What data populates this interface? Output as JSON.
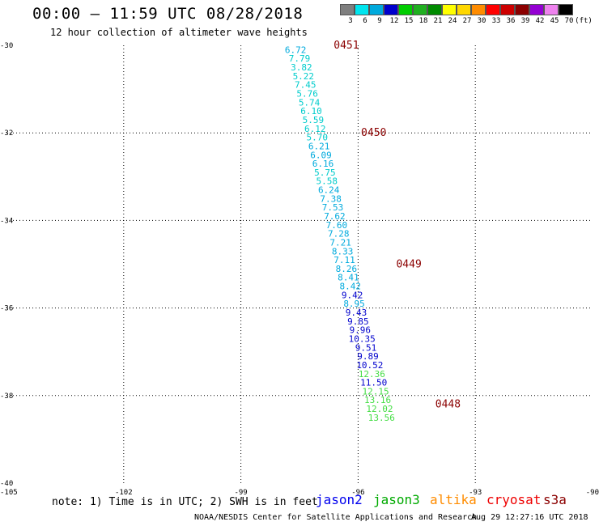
{
  "header": {
    "title": "00:00 — 11:59 UTC 08/28/2018",
    "subtitle": "12 hour collection of altimeter wave heights"
  },
  "color_legend": {
    "unit": "(ft)",
    "items": [
      {
        "label": "3",
        "color": "#7f7f7f"
      },
      {
        "label": "6",
        "color": "#00e5ee"
      },
      {
        "label": "9",
        "color": "#00aadd"
      },
      {
        "label": "12",
        "color": "#0000cd"
      },
      {
        "label": "15",
        "color": "#00cd00"
      },
      {
        "label": "18",
        "color": "#20b020"
      },
      {
        "label": "21",
        "color": "#008b00"
      },
      {
        "label": "24",
        "color": "#ffff00"
      },
      {
        "label": "27",
        "color": "#ffd700"
      },
      {
        "label": "30",
        "color": "#ff8c00"
      },
      {
        "label": "33",
        "color": "#ff0000"
      },
      {
        "label": "36",
        "color": "#cd0000"
      },
      {
        "label": "39",
        "color": "#8b0000"
      },
      {
        "label": "42",
        "color": "#9400d3"
      },
      {
        "label": "45",
        "color": "#ee82ee"
      },
      {
        "label": "70",
        "color": "#000000"
      }
    ]
  },
  "footer": {
    "note": "note: 1) Time is in UTC; 2) SWH is in feet",
    "satellites": [
      {
        "name": "jason2",
        "color": "#0000ee"
      },
      {
        "name": "jason3",
        "color": "#00aa00"
      },
      {
        "name": "altika",
        "color": "#ff8c00"
      },
      {
        "name": "cryosat",
        "color": "#ee0000"
      },
      {
        "name": "s3a",
        "color": "#8b0000"
      }
    ],
    "credit": "NOAA/NESDIS Center for Satellite Applications and Research",
    "timestamp": "Aug 29 12:27:16 UTC 2018"
  },
  "chart_data": {
    "type": "scatter",
    "xlim": [
      -105,
      -90
    ],
    "ylim": [
      -40,
      -30
    ],
    "x_ticks": [
      "-105",
      "-102",
      "-99",
      "-96",
      "-93",
      "-90"
    ],
    "y_ticks": [
      "-30",
      "-32",
      "-34",
      "-36",
      "-38",
      "-40"
    ],
    "grid": true,
    "colors": {
      "light": "#00cccc",
      "cyan": "#00aadd",
      "blue": "#0000cd",
      "green": "#44dd44",
      "time": "#8b0000"
    },
    "points": [
      {
        "lon": -97.6,
        "lat": -30.1,
        "value": "6.72",
        "color": "cyan"
      },
      {
        "lon": -97.5,
        "lat": -30.3,
        "value": "7.79",
        "color": "light"
      },
      {
        "lon": -97.45,
        "lat": -30.5,
        "value": "3.82",
        "color": "light"
      },
      {
        "lon": -97.4,
        "lat": -30.7,
        "value": "5.22",
        "color": "light"
      },
      {
        "lon": -97.35,
        "lat": -30.9,
        "value": "7.45",
        "color": "light"
      },
      {
        "lon": -97.3,
        "lat": -31.1,
        "value": "5.76",
        "color": "light"
      },
      {
        "lon": -97.25,
        "lat": -31.3,
        "value": "5.74",
        "color": "light"
      },
      {
        "lon": -97.2,
        "lat": -31.5,
        "value": "6.10",
        "color": "light"
      },
      {
        "lon": -97.15,
        "lat": -31.7,
        "value": "5.59",
        "color": "light"
      },
      {
        "lon": -97.1,
        "lat": -31.9,
        "value": "6.12",
        "color": "light"
      },
      {
        "lon": -97.05,
        "lat": -32.1,
        "value": "5.70",
        "color": "light"
      },
      {
        "lon": -97.0,
        "lat": -32.3,
        "value": "6.21",
        "color": "cyan"
      },
      {
        "lon": -96.95,
        "lat": -32.5,
        "value": "6.09",
        "color": "cyan"
      },
      {
        "lon": -96.9,
        "lat": -32.7,
        "value": "6.16",
        "color": "cyan"
      },
      {
        "lon": -96.85,
        "lat": -32.9,
        "value": "5.75",
        "color": "light"
      },
      {
        "lon": -96.8,
        "lat": -33.1,
        "value": "5.58",
        "color": "light"
      },
      {
        "lon": -96.75,
        "lat": -33.3,
        "value": "6.24",
        "color": "cyan"
      },
      {
        "lon": -96.7,
        "lat": -33.5,
        "value": "7.38",
        "color": "cyan"
      },
      {
        "lon": -96.65,
        "lat": -33.7,
        "value": "7.53",
        "color": "cyan"
      },
      {
        "lon": -96.6,
        "lat": -33.9,
        "value": "7.62",
        "color": "cyan"
      },
      {
        "lon": -96.55,
        "lat": -34.1,
        "value": "7.60",
        "color": "cyan"
      },
      {
        "lon": -96.5,
        "lat": -34.3,
        "value": "7.28",
        "color": "cyan"
      },
      {
        "lon": -96.45,
        "lat": -34.5,
        "value": "7.21",
        "color": "cyan"
      },
      {
        "lon": -96.4,
        "lat": -34.7,
        "value": "8.33",
        "color": "cyan"
      },
      {
        "lon": -96.35,
        "lat": -34.9,
        "value": "7.11",
        "color": "cyan"
      },
      {
        "lon": -96.3,
        "lat": -35.1,
        "value": "8.26",
        "color": "cyan"
      },
      {
        "lon": -96.25,
        "lat": -35.3,
        "value": "8.41",
        "color": "cyan"
      },
      {
        "lon": -96.2,
        "lat": -35.5,
        "value": "8.42",
        "color": "cyan"
      },
      {
        "lon": -96.15,
        "lat": -35.7,
        "value": "9.42",
        "color": "blue"
      },
      {
        "lon": -96.1,
        "lat": -35.9,
        "value": "8.95",
        "color": "cyan"
      },
      {
        "lon": -96.05,
        "lat": -36.1,
        "value": "9.43",
        "color": "blue"
      },
      {
        "lon": -96.0,
        "lat": -36.3,
        "value": "9.85",
        "color": "blue"
      },
      {
        "lon": -95.95,
        "lat": -36.5,
        "value": "9.96",
        "color": "blue"
      },
      {
        "lon": -95.9,
        "lat": -36.7,
        "value": "10.35",
        "color": "blue"
      },
      {
        "lon": -95.8,
        "lat": -36.9,
        "value": "9.51",
        "color": "blue"
      },
      {
        "lon": -95.75,
        "lat": -37.1,
        "value": "9.89",
        "color": "blue"
      },
      {
        "lon": -95.7,
        "lat": -37.3,
        "value": "10.52",
        "color": "blue"
      },
      {
        "lon": -95.65,
        "lat": -37.5,
        "value": "12.36",
        "color": "green"
      },
      {
        "lon": -95.6,
        "lat": -37.7,
        "value": "11.50",
        "color": "blue"
      },
      {
        "lon": -95.55,
        "lat": -37.9,
        "value": "12.15",
        "color": "green"
      },
      {
        "lon": -95.5,
        "lat": -38.1,
        "value": "13.16",
        "color": "green"
      },
      {
        "lon": -95.45,
        "lat": -38.3,
        "value": "12.02",
        "color": "green"
      },
      {
        "lon": -95.4,
        "lat": -38.5,
        "value": "13.56",
        "color": "green"
      }
    ],
    "time_labels": [
      {
        "lon": -96.3,
        "lat": -30.0,
        "text": "0451"
      },
      {
        "lon": -95.6,
        "lat": -32.0,
        "text": "0450"
      },
      {
        "lon": -94.7,
        "lat": -35.0,
        "text": "0449"
      },
      {
        "lon": -93.7,
        "lat": -38.2,
        "text": "0448"
      }
    ]
  }
}
